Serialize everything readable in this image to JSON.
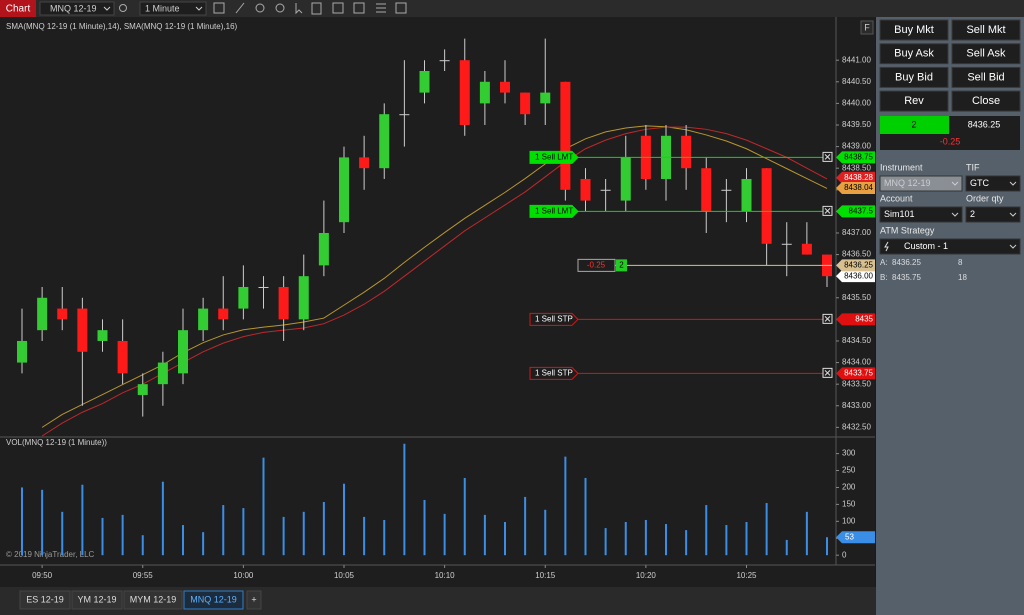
{
  "toolbar": {
    "title": "Chart",
    "instrument": "MNQ 12-19",
    "interval": "1 Minute",
    "float_button": "F"
  },
  "chart_data": [
    {
      "type": "candlestick",
      "title": "SMA(MNQ 12-19 (1 Minute),14), SMA(MNQ 12-19 (1 Minute),16)",
      "categories": [
        null,
        "09:50",
        null,
        null,
        null,
        null,
        "09:55",
        null,
        null,
        null,
        null,
        "10:00",
        null,
        null,
        null,
        null,
        "10:05",
        null,
        null,
        null,
        null,
        "10:10",
        null,
        null,
        null,
        null,
        "10:15",
        null,
        null,
        null,
        null,
        "10:20",
        null,
        null,
        null,
        null,
        "10:25",
        null,
        null,
        null,
        null
      ],
      "open": [
        8434.0,
        8434.75,
        8435.25,
        8435.25,
        8434.5,
        8434.5,
        8433.25,
        8433.5,
        8433.75,
        8434.75,
        8435.25,
        8435.25,
        8435.75,
        8435.75,
        8435.0,
        8436.25,
        8437.25,
        8438.75,
        8438.5,
        8439.75,
        8440.25,
        8441.0,
        8441.0,
        8440.0,
        8440.5,
        8440.25,
        8440.0,
        8440.5,
        8438.25,
        8438.0,
        8437.75,
        8439.25,
        8438.25,
        8439.25,
        8438.5,
        8438.0,
        8437.5,
        8438.5,
        8436.75,
        8436.75,
        8436.5
      ],
      "high": [
        8435.25,
        8435.75,
        8435.75,
        8435.5,
        8435.0,
        8435.0,
        8433.75,
        8434.25,
        8435.25,
        8435.5,
        8436.0,
        8436.25,
        8436.0,
        8436.0,
        8436.5,
        8437.75,
        8439.0,
        8439.25,
        8440.0,
        8441.0,
        8441.0,
        8441.25,
        8441.5,
        8440.75,
        8441.0,
        8440.25,
        8441.5,
        8440.5,
        8438.5,
        8438.25,
        8439.25,
        8439.5,
        8439.5,
        8439.5,
        8438.75,
        8438.25,
        8438.5,
        8438.5,
        8437.25,
        8437.25,
        8436.5
      ],
      "low": [
        8433.75,
        8434.5,
        8434.75,
        8433.0,
        8434.25,
        8433.5,
        8432.75,
        8433.0,
        8433.5,
        8434.5,
        8434.75,
        8435.0,
        8435.25,
        8434.5,
        8434.75,
        8436.0,
        8437.0,
        8438.0,
        8438.25,
        8439.0,
        8440.0,
        8440.75,
        8439.25,
        8439.5,
        8440.0,
        8439.5,
        8439.5,
        8437.75,
        8437.5,
        8437.5,
        8437.5,
        8438.0,
        8437.75,
        8438.0,
        8437.0,
        8437.25,
        8437.25,
        8436.25,
        8436.0,
        8436.5,
        8435.75
      ],
      "close": [
        8434.5,
        8435.5,
        8435.0,
        8434.25,
        8434.75,
        8433.75,
        8433.5,
        8434.0,
        8434.75,
        8435.25,
        8435.0,
        8435.75,
        8435.75,
        8435.0,
        8436.0,
        8437.0,
        8438.75,
        8438.5,
        8439.75,
        8439.75,
        8440.75,
        8441.0,
        8439.5,
        8440.5,
        8440.25,
        8439.75,
        8440.25,
        8438.0,
        8437.75,
        8438.0,
        8438.75,
        8438.25,
        8439.25,
        8438.5,
        8437.5,
        8438.0,
        8438.25,
        8436.75,
        8436.75,
        8436.5,
        8436.0
      ],
      "up_color": "#33cc33",
      "down_color": "#ff1a1a",
      "ylim": [
        8432.3,
        8442.0
      ],
      "yticks": [
        {
          "value": 8432.5,
          "label": "8432.50"
        },
        {
          "value": 8433,
          "label": "8433.00"
        },
        {
          "value": 8433.5,
          "label": "8433.50"
        },
        {
          "value": 8434,
          "label": "8434.00"
        },
        {
          "value": 8434.5,
          "label": "8434.50"
        },
        {
          "value": 8435,
          "label": "8435.00"
        },
        {
          "value": 8435.5,
          "label": "8435.50"
        },
        {
          "value": 8436,
          "label": "8436.00"
        },
        {
          "value": 8436.5,
          "label": "8436.50"
        },
        {
          "value": 8437,
          "label": "8437.00"
        },
        {
          "value": 8437.5,
          "label": "8437.50"
        },
        {
          "value": 8438,
          "label": "8438.00"
        },
        {
          "value": 8438.5,
          "label": "8438.50"
        },
        {
          "value": 8439,
          "label": "8439.00"
        },
        {
          "value": 8439.5,
          "label": "8439.50"
        },
        {
          "value": 8440,
          "label": "8440.00"
        },
        {
          "value": 8440.5,
          "label": "8440.50"
        },
        {
          "value": 8441,
          "label": "8441.00"
        }
      ],
      "series": [
        {
          "color": "#b8962e",
          "values": [
            null,
            8432.5,
            8432.8,
            8433.03,
            8433.26,
            8433.49,
            8433.72,
            8433.95,
            8434.23,
            8434.46,
            8434.64,
            8434.76,
            8434.82,
            8434.87,
            8434.94,
            8435.03,
            8435.33,
            8435.63,
            8435.95,
            8436.32,
            8436.67,
            8437.01,
            8437.34,
            8437.64,
            8437.94,
            8438.26,
            8438.6,
            8438.95,
            8439.18,
            8439.34,
            8439.43,
            8439.48,
            8439.46,
            8439.39,
            8439.27,
            8439.13,
            8438.95,
            8438.72,
            8438.49,
            8438.26,
            8438.03
          ]
        },
        {
          "color": "#c0282a",
          "values": [
            null,
            8432.3,
            8432.6,
            8432.85,
            8433.05,
            8433.3,
            8433.5,
            8433.75,
            8434.0,
            8434.25,
            8434.45,
            8434.6,
            8434.7,
            8434.75,
            8434.8,
            8434.9,
            8435.1,
            8435.35,
            8435.65,
            8436.0,
            8436.35,
            8436.7,
            8437.05,
            8437.35,
            8437.65,
            8437.95,
            8438.3,
            8438.65,
            8438.95,
            8439.15,
            8439.3,
            8439.4,
            8439.45,
            8439.45,
            8439.4,
            8439.3,
            8439.15,
            8438.95,
            8438.75,
            8438.5,
            8438.25
          ]
        }
      ],
      "orders": [
        {
          "label": "1 Sell LMT",
          "price": 8438.75,
          "color": "#00e000",
          "filled": true
        },
        {
          "label": "1 Sell LMT",
          "price": 8437.5,
          "color": "#00e000",
          "filled": true
        },
        {
          "label": "1 Sell STP",
          "price": 8435.0,
          "color": "#e01010",
          "filled": false
        },
        {
          "label": "1 Sell STP",
          "price": 8433.75,
          "color": "#e01010",
          "filled": false
        }
      ],
      "position": {
        "pnl": -0.25,
        "quantity": 2,
        "price": 8436.25,
        "color": "#d8c090"
      },
      "price_markers": [
        {
          "value": 8438.28,
          "color": "#e02020",
          "text_color": "#ffffff"
        },
        {
          "value": 8438.04,
          "color": "#e8a040",
          "text_color": "#000000"
        },
        {
          "value": 8436.0,
          "label": "8436.00",
          "color": "#ffffff",
          "text_color": "#000000"
        }
      ]
    },
    {
      "type": "bar",
      "title": "VOL(MNQ 12-19 (1 Minute))",
      "copyright": "© 2019 NinjaTrader, LLC",
      "values": [
        200,
        193,
        128,
        208,
        110,
        119,
        59,
        217,
        89,
        68,
        148,
        139,
        288,
        113,
        128,
        157,
        211,
        113,
        104,
        329,
        163,
        122,
        228,
        119,
        98,
        172,
        134,
        291,
        228,
        80,
        98,
        104,
        92,
        74,
        148,
        89,
        98,
        154,
        45,
        128,
        53
      ],
      "color": "#3a8ee6",
      "ylim": [
        -29,
        349
      ],
      "yticks": [
        0,
        50,
        100,
        150,
        200,
        250,
        300
      ]
    }
  ],
  "tabs": [
    "ES 12-19",
    "YM 12-19",
    "MYM 12-19",
    "MNQ 12-19",
    "+"
  ],
  "active_tab": 3,
  "order_panel": {
    "buttons": [
      "Buy Mkt",
      "Sell Mkt",
      "Buy Ask",
      "Sell Ask",
      "Buy Bid",
      "Sell Bid",
      "Rev",
      "Close"
    ],
    "position": {
      "quantity": 2,
      "price": 8436.25,
      "pnl": -0.25
    },
    "fields": [
      {
        "label": "Instrument",
        "value": "MNQ 12-19"
      },
      {
        "label": "TIF",
        "value": "GTC"
      },
      {
        "label": "Account",
        "value": "Sim101"
      },
      {
        "label": "Order qty",
        "value": 2
      }
    ],
    "atm": {
      "label": "ATM Strategy",
      "value": "Custom - 1"
    },
    "ask": {
      "label": "A:",
      "price": 8436.25,
      "size": 8
    },
    "bid": {
      "label": "B:",
      "price": 8435.75,
      "size": 18
    }
  }
}
